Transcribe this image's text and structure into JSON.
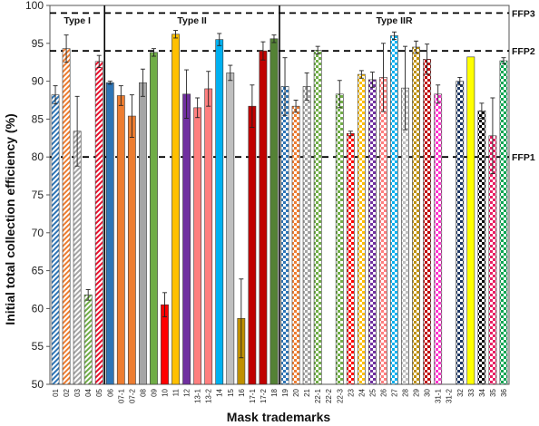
{
  "chart_data": {
    "type": "bar",
    "xlabel": "Mask trademarks",
    "ylabel": "Initial total collection efficiency (%)",
    "ylim": [
      50,
      100
    ],
    "yticks": [
      50,
      55,
      60,
      65,
      70,
      75,
      80,
      85,
      90,
      95,
      100
    ],
    "grid": false,
    "legend": "none",
    "categories": [
      "01",
      "02",
      "03",
      "04",
      "05",
      "06",
      "07-1",
      "07-2",
      "08",
      "09",
      "10",
      "11",
      "12",
      "13-1",
      "13-2",
      "14",
      "15",
      "16",
      "17-1",
      "17-2",
      "18",
      "19",
      "20",
      "21",
      "22-1",
      "22-2",
      "22-3",
      "23",
      "24",
      "25",
      "26",
      "27",
      "28",
      "29",
      "30",
      "31-1",
      "31-2",
      "32",
      "33",
      "34",
      "35",
      "36"
    ],
    "values": [
      88.2,
      94.3,
      83.4,
      61.8,
      92.6,
      89.8,
      88.1,
      85.4,
      89.8,
      93.8,
      60.5,
      96.2,
      88.3,
      86.5,
      89.0,
      95.5,
      91.1,
      58.7,
      86.7,
      94.0,
      95.6,
      89.3,
      86.7,
      89.3,
      94.1,
      null,
      88.3,
      83.1,
      90.9,
      90.2,
      90.5,
      96.0,
      89.1,
      94.5,
      92.9,
      88.3,
      null,
      90.0,
      93.2,
      86.1,
      82.8,
      92.7
    ],
    "errors": [
      1.2,
      1.8,
      4.6,
      0.7,
      0.8,
      0.2,
      1.3,
      2.8,
      1.8,
      0.5,
      1.6,
      0.5,
      3.2,
      1.3,
      2.3,
      0.8,
      1.0,
      5.2,
      2.8,
      1.2,
      0.5,
      3.8,
      0.8,
      1.8,
      0.5,
      null,
      1.8,
      0.3,
      0.5,
      1.0,
      4.5,
      0.5,
      5.5,
      0.8,
      2.0,
      1.2,
      null,
      0.5,
      0.0,
      1.0,
      5.0,
      0.4
    ],
    "colors": [
      "#2e75b6",
      "#ed7d31",
      "#a5a5a5",
      "#70ad47",
      "#e8112d",
      "#2e75b6",
      "#ed7d31",
      "#ed7d31",
      "#a5a5a5",
      "#70ad47",
      "#ff0000",
      "#ffc000",
      "#7030a0",
      "#ff7f7f",
      "#ff7f7f",
      "#00b0f0",
      "#bfbfbf",
      "#bf9000",
      "#c00000",
      "#c00000",
      "#548235",
      "#2e75b6",
      "#ed7d31",
      "#a5a5a5",
      "#70ad47",
      "#ffffff",
      "#70ad47",
      "#ff0000",
      "#ffc000",
      "#7030a0",
      "#ff7f7f",
      "#00b0f0",
      "#bfbfbf",
      "#bf9000",
      "#c00000",
      "#ff33cc",
      "#ffffff",
      "#1f3864",
      "#ffff00",
      "#000000",
      "#e91e63",
      "#00a651"
    ],
    "patterns": [
      "hatch",
      "hatch",
      "hatch",
      "hatch",
      "hatch",
      "solid",
      "solid",
      "solid",
      "solid",
      "solid",
      "solid",
      "solid",
      "solid",
      "solid",
      "solid",
      "solid",
      "solid",
      "solid",
      "solid",
      "solid",
      "solid",
      "check",
      "check",
      "check",
      "check",
      "check",
      "check",
      "check",
      "check",
      "check",
      "check",
      "check",
      "check",
      "check",
      "check",
      "check",
      "check",
      "check",
      "solid",
      "check",
      "check",
      "check"
    ],
    "reference_lines": [
      {
        "label": "FFP1",
        "y": 80
      },
      {
        "label": "FFP2",
        "y": 94
      },
      {
        "label": "FFP3",
        "y": 99
      }
    ],
    "groups": [
      {
        "label": "Type I",
        "start": 0,
        "end": 4
      },
      {
        "label": "Type II",
        "start": 5,
        "end": 20
      },
      {
        "label": "Type IIR",
        "start": 21,
        "end": 41
      }
    ]
  }
}
